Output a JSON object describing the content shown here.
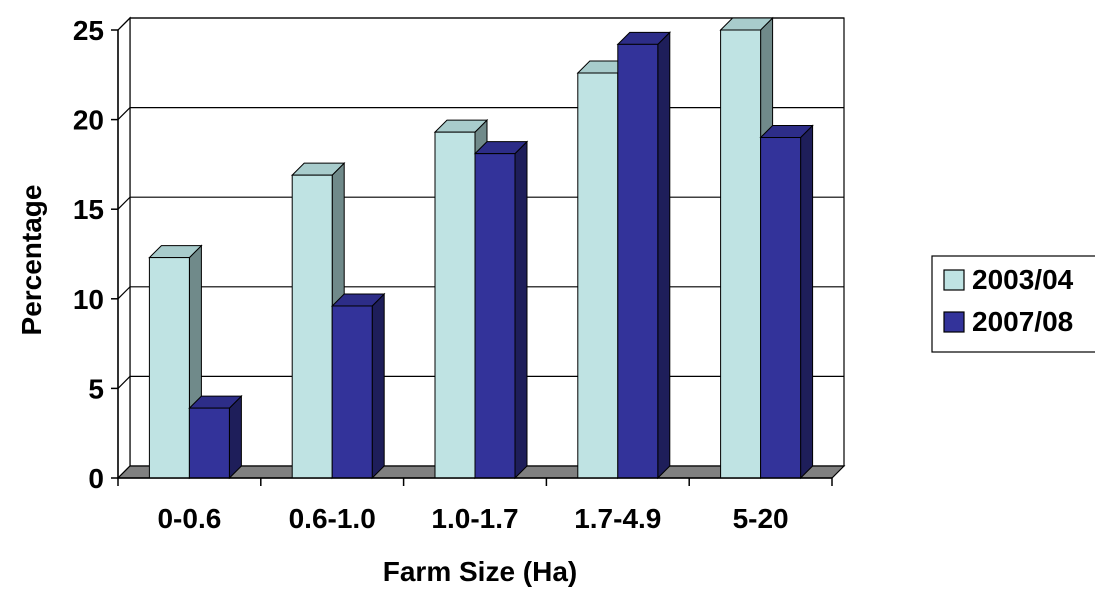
{
  "chart_data": {
    "type": "bar",
    "categories": [
      "0-0.6",
      "0.6-1.0",
      "1.0-1.7",
      "1.7-4.9",
      "5-20"
    ],
    "series": [
      {
        "name": "2003/04",
        "values": [
          12.3,
          16.9,
          19.3,
          22.6,
          25.0
        ],
        "color": "#bfe3e3"
      },
      {
        "name": "2007/08",
        "values": [
          3.9,
          9.6,
          18.1,
          24.2,
          19.0
        ],
        "color": "#33339a"
      }
    ],
    "xlabel": "Farm Size (Ha)",
    "ylabel": "Percentage",
    "ylim": [
      0,
      25
    ],
    "yticks": [
      0,
      5,
      10,
      15,
      20,
      25
    ],
    "grid": true,
    "legend_position": "right",
    "three_d": true
  }
}
